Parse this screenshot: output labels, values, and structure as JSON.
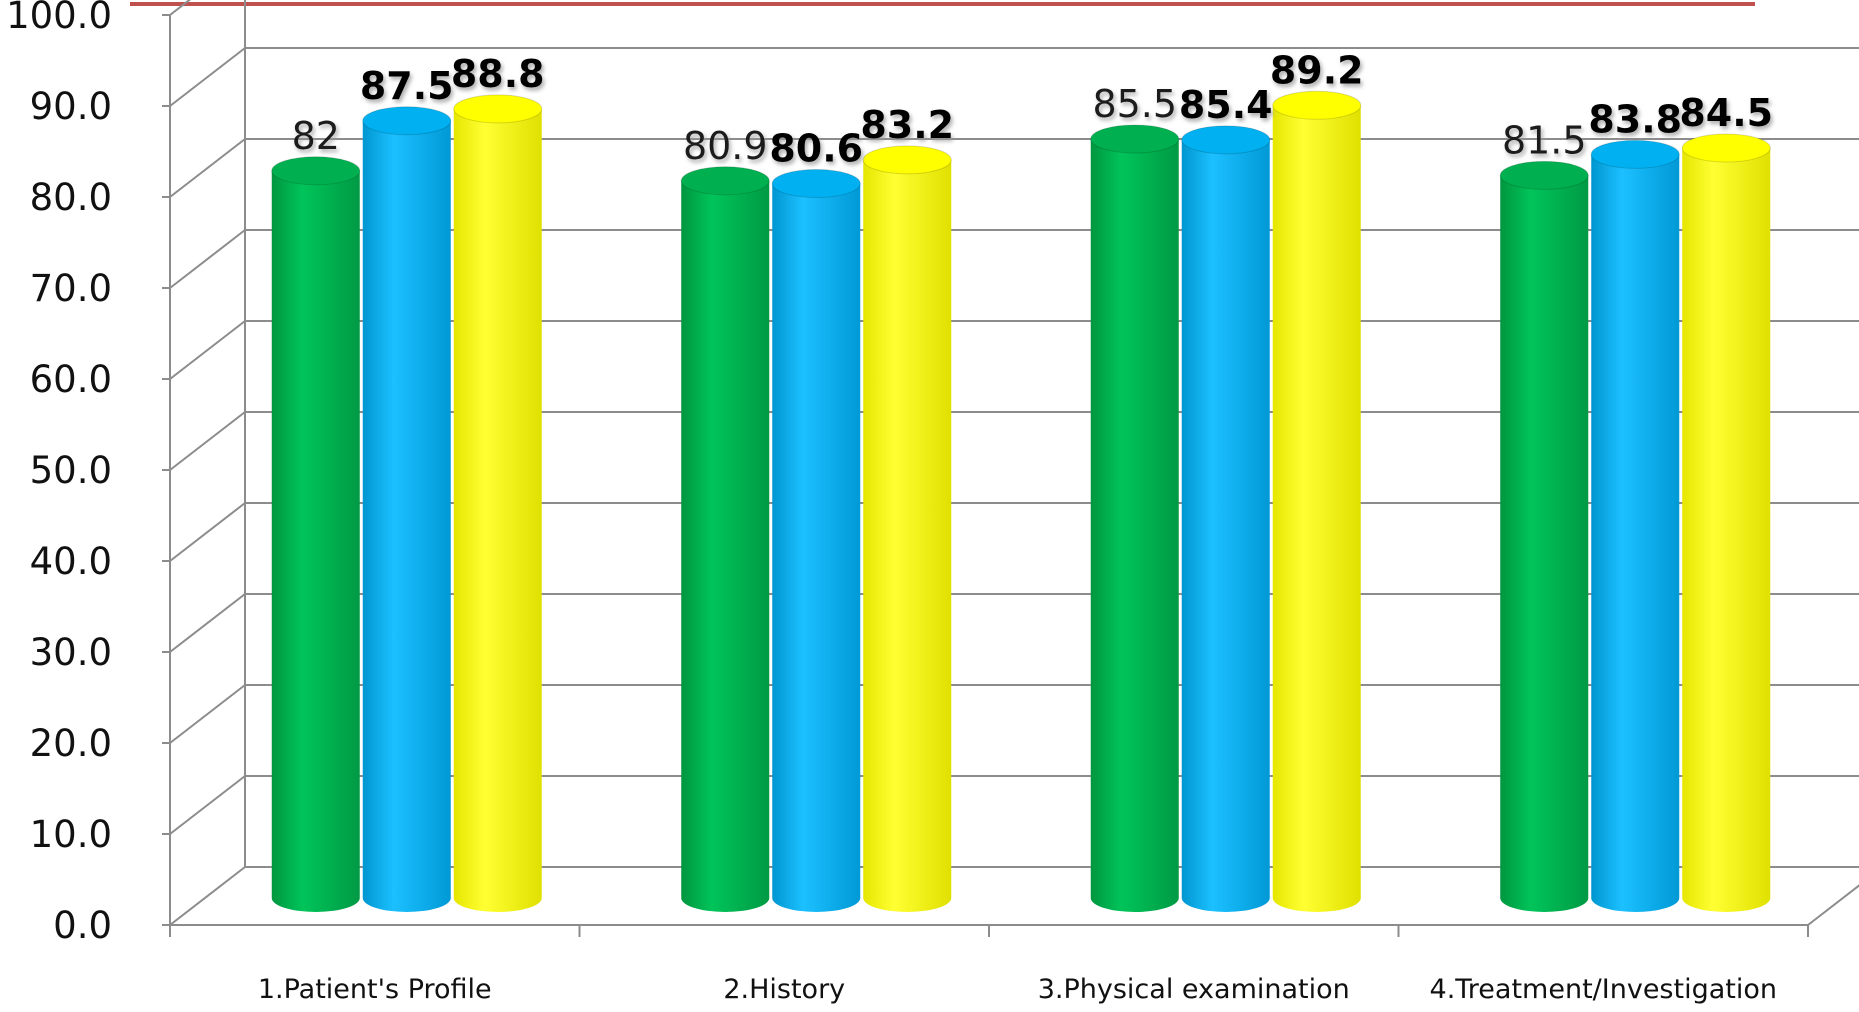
{
  "chart_data": {
    "type": "bar",
    "categories": [
      "1.Patient's Profile",
      "2.History",
      "3.Physical examination",
      "4.Treatment/Investigation"
    ],
    "series": [
      {
        "values": [
          82,
          80.9,
          85.5,
          81.5
        ],
        "labels": [
          "82",
          "80.9",
          "85.5",
          "81.5"
        ],
        "color": "#00b050"
      },
      {
        "values": [
          87.5,
          80.6,
          85.4,
          83.8
        ],
        "labels": [
          "87.5",
          "80.6",
          "85.4",
          "83.8"
        ],
        "color": "#00b0f0"
      },
      {
        "values": [
          88.8,
          83.2,
          89.2,
          84.5
        ],
        "labels": [
          "88.8",
          "83.2",
          "89.2",
          "84.5"
        ],
        "color": "#ffff00"
      }
    ],
    "yticks": [
      "0.0",
      "10.0",
      "20.0",
      "30.0",
      "40.0",
      "50.0",
      "60.0",
      "70.0",
      "80.0",
      "90.0",
      "100.0"
    ],
    "ylim": [
      0,
      100
    ],
    "grid": true,
    "style": "3d-cylinder"
  }
}
